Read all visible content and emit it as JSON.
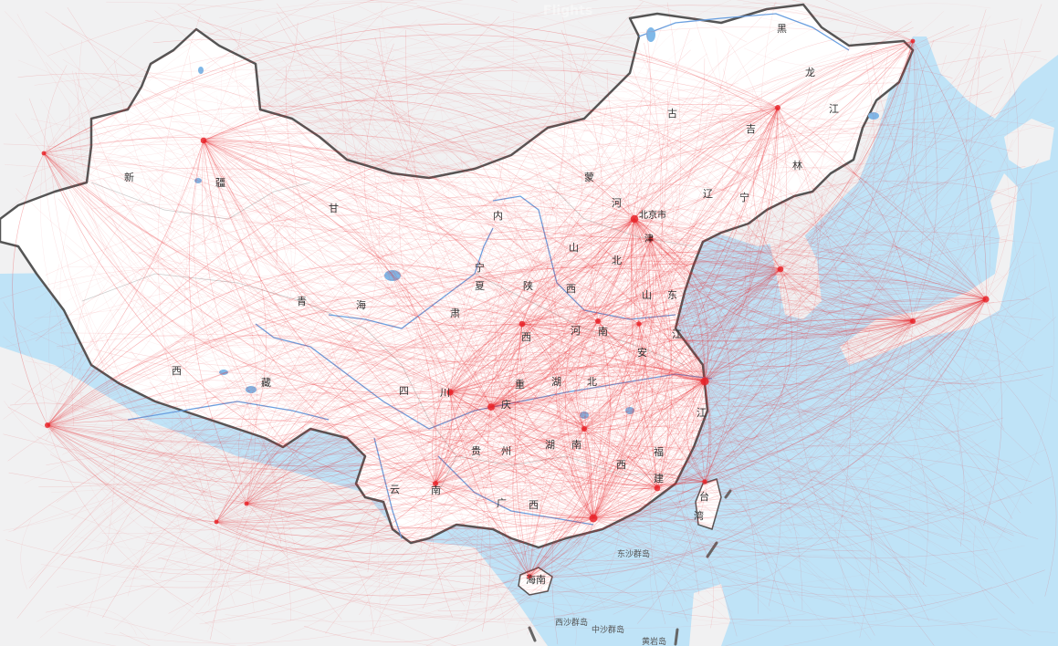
{
  "map": {
    "watermark": "Flights",
    "colors": {
      "sea": "#bfe3f7",
      "foreign_land": "#f1f1f2",
      "china_land": "#ffffff",
      "border": "#555555",
      "river": "#6aa0e0",
      "lake": "#7fb8e8",
      "route": "#e8262b"
    },
    "province_labels": [
      {
        "id": "heilongjiang-1",
        "text": "黑"
      },
      {
        "id": "heilongjiang-2",
        "text": "龙"
      },
      {
        "id": "heilongjiang-3",
        "text": "江"
      },
      {
        "id": "jilin-1",
        "text": "吉"
      },
      {
        "id": "jilin-2",
        "text": "林"
      },
      {
        "id": "neimenggu-1",
        "text": "古"
      },
      {
        "id": "neimenggu-2",
        "text": "蒙"
      },
      {
        "id": "neimenggu-3",
        "text": "内"
      },
      {
        "id": "liaoning-1",
        "text": "辽"
      },
      {
        "id": "liaoning-2",
        "text": "宁"
      },
      {
        "id": "hebei-1",
        "text": "河"
      },
      {
        "id": "hebei-2",
        "text": "北"
      },
      {
        "id": "xinjiang-1",
        "text": "新"
      },
      {
        "id": "xinjiang-2",
        "text": "疆"
      },
      {
        "id": "gansu-1",
        "text": "甘"
      },
      {
        "id": "ningxia-1",
        "text": "宁"
      },
      {
        "id": "ningxia-2",
        "text": "夏"
      },
      {
        "id": "shanxi-1",
        "text": "山"
      },
      {
        "id": "shanxi-2",
        "text": "西"
      },
      {
        "id": "shaanxi-1",
        "text": "陕"
      },
      {
        "id": "shaanxi-2",
        "text": "西"
      },
      {
        "id": "shandong-1",
        "text": "山"
      },
      {
        "id": "shandong-2",
        "text": "东"
      },
      {
        "id": "qinghai-1",
        "text": "青"
      },
      {
        "id": "qinghai-2",
        "text": "海"
      },
      {
        "id": "gansu-2",
        "text": "肃"
      },
      {
        "id": "henan-1",
        "text": "河"
      },
      {
        "id": "henan-2",
        "text": "南"
      },
      {
        "id": "jiangsu-1",
        "text": "江"
      },
      {
        "id": "anhui-1",
        "text": "安"
      },
      {
        "id": "xizang-1",
        "text": "西"
      },
      {
        "id": "xizang-2",
        "text": "藏"
      },
      {
        "id": "sichuan-1",
        "text": "四"
      },
      {
        "id": "sichuan-2",
        "text": "川"
      },
      {
        "id": "chongqing-1",
        "text": "重"
      },
      {
        "id": "chongqing-2",
        "text": "庆"
      },
      {
        "id": "hubei-1",
        "text": "湖"
      },
      {
        "id": "hubei-2",
        "text": "北"
      },
      {
        "id": "zhejiang-1",
        "text": "江"
      },
      {
        "id": "guizhou-1",
        "text": "贵"
      },
      {
        "id": "guizhou-2",
        "text": "州"
      },
      {
        "id": "hunan-1",
        "text": "湖"
      },
      {
        "id": "hunan-2",
        "text": "南"
      },
      {
        "id": "jiangxi-1",
        "text": "西"
      },
      {
        "id": "fujian-1",
        "text": "福"
      },
      {
        "id": "fujian-2",
        "text": "建"
      },
      {
        "id": "yunnan-1",
        "text": "云"
      },
      {
        "id": "yunnan-2",
        "text": "南"
      },
      {
        "id": "guangxi-1",
        "text": "广"
      },
      {
        "id": "guangxi-2",
        "text": "西"
      },
      {
        "id": "taiwan-1",
        "text": "台"
      },
      {
        "id": "taiwan-2",
        "text": "湾"
      },
      {
        "id": "hainan-1",
        "text": "海南"
      }
    ],
    "city_labels": [
      {
        "id": "beijing",
        "text": "北京市"
      },
      {
        "id": "tianjin",
        "text": "津"
      }
    ],
    "island_labels": [
      {
        "id": "dongsha",
        "text": "东沙群岛"
      },
      {
        "id": "xisha",
        "text": "西沙群岛"
      },
      {
        "id": "zhongsha",
        "text": "中沙群岛"
      },
      {
        "id": "huangyan",
        "text": "黄岩岛"
      }
    ]
  }
}
